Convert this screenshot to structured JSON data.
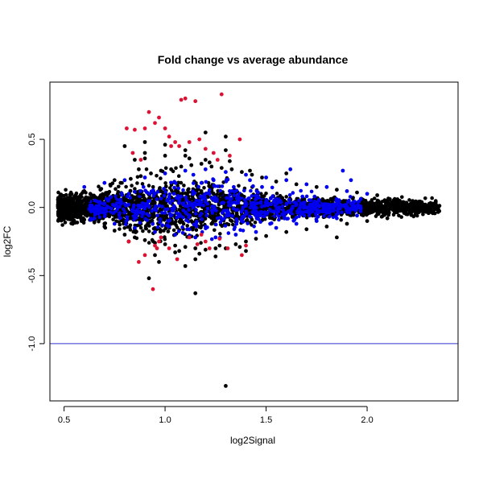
{
  "chart_data": {
    "type": "scatter",
    "title": "Fold change vs average abundance",
    "xlabel": "log2Signal",
    "ylabel": "log2FC",
    "xlim": [
      0.43,
      2.45
    ],
    "ylim": [
      -1.42,
      0.92
    ],
    "x_ticks": [
      0.5,
      1.0,
      1.5,
      2.0
    ],
    "x_tick_labels": [
      "0.5",
      "1.0",
      "1.5",
      "2.0"
    ],
    "y_ticks": [
      -1.0,
      -0.5,
      0.0,
      0.5
    ],
    "y_tick_labels": [
      "-1.0",
      "-0.5",
      "0.0",
      "0.5"
    ],
    "grid": false,
    "hline": {
      "y": -1.0,
      "color": "#3333cc"
    },
    "colors": {
      "background_points": "#000000",
      "mid_points": "#0000ee",
      "significant_points": "#dd1133"
    },
    "series": [
      {
        "color": "#000000",
        "x": [
          0.47,
          0.5,
          0.53,
          0.55,
          0.58,
          0.6,
          0.63,
          0.65,
          0.68,
          0.7,
          0.73,
          0.75,
          0.78,
          0.8,
          0.83,
          0.85,
          0.88,
          0.9,
          0.93,
          0.95,
          0.98,
          1.0,
          1.03,
          1.05,
          1.08,
          1.1,
          1.13,
          1.15,
          1.18,
          1.2,
          1.23,
          1.25,
          1.28,
          1.3,
          1.33,
          1.35,
          1.38,
          1.4,
          1.43,
          1.45,
          1.48,
          1.5,
          1.55,
          1.6,
          1.65,
          1.7,
          1.75,
          1.8,
          1.85,
          1.9,
          1.95,
          2.0,
          2.05,
          2.1,
          2.15,
          2.2,
          2.25,
          2.3,
          2.35,
          0.8,
          0.85,
          0.9,
          0.95,
          1.0,
          1.05,
          1.1,
          1.2,
          1.25,
          0.9,
          1.0,
          1.1,
          1.2,
          1.3,
          1.4,
          1.6,
          1.85,
          1.1,
          1.15,
          0.92,
          0.97,
          1.3,
          0.6,
          0.7,
          0.75,
          0.82,
          0.87,
          1.07,
          1.12,
          1.17,
          1.22,
          1.27,
          1.32,
          1.37,
          1.42,
          0.62,
          0.72,
          0.77,
          0.83,
          0.88,
          0.93,
          0.98,
          1.03,
          1.08,
          1.13,
          1.18,
          1.23,
          1.28,
          1.33,
          1.38,
          1.43,
          1.48,
          1.53,
          1.58,
          1.63,
          1.68,
          1.73,
          1.78,
          1.83,
          1.88,
          1.93,
          1.98,
          2.03,
          0.9,
          1.15,
          1.3
        ],
        "y": [
          0.02,
          -0.04,
          0.05,
          -0.06,
          0.07,
          -0.09,
          0.1,
          -0.11,
          0.13,
          -0.14,
          0.16,
          -0.17,
          0.18,
          -0.2,
          0.21,
          -0.22,
          0.23,
          -0.24,
          0.25,
          -0.26,
          0.27,
          -0.27,
          0.28,
          -0.28,
          0.3,
          -0.29,
          0.31,
          -0.3,
          0.32,
          -0.31,
          0.3,
          -0.3,
          0.29,
          -0.3,
          0.28,
          -0.27,
          0.26,
          -0.25,
          0.24,
          -0.23,
          0.22,
          -0.21,
          0.19,
          -0.18,
          0.17,
          -0.16,
          0.15,
          -0.14,
          0.13,
          -0.12,
          0.11,
          -0.1,
          0.09,
          -0.08,
          0.06,
          -0.05,
          0.04,
          -0.03,
          0.0,
          0.45,
          0.35,
          0.4,
          -0.35,
          0.38,
          -0.33,
          0.42,
          0.35,
          -0.36,
          0.48,
          0.46,
          0.38,
          0.55,
          0.42,
          -0.32,
          0.25,
          -0.22,
          -0.43,
          -0.63,
          -0.52,
          -0.4,
          0.52,
          0.12,
          -0.12,
          0.2,
          -0.25,
          0.28,
          -0.32,
          0.36,
          -0.34,
          0.33,
          -0.28,
          0.34,
          -0.29,
          0.27,
          0.05,
          -0.05,
          0.08,
          -0.08,
          0.1,
          -0.1,
          0.12,
          -0.12,
          0.1,
          -0.1,
          0.12,
          -0.12,
          0.1,
          -0.1,
          0.09,
          -0.09,
          0.08,
          -0.08,
          0.07,
          -0.07,
          0.06,
          -0.06,
          0.05,
          -0.05,
          0.04,
          -0.04,
          0.03,
          -0.03,
          0.36,
          -0.38,
          -1.31
        ]
      },
      {
        "color": "#0000ee",
        "x": [
          0.6,
          0.65,
          0.7,
          0.75,
          0.8,
          0.85,
          0.9,
          0.95,
          1.0,
          1.05,
          1.1,
          1.15,
          1.2,
          1.25,
          1.3,
          1.35,
          1.4,
          1.45,
          1.5,
          1.55,
          1.6,
          1.65,
          1.7,
          1.75,
          1.8,
          1.85,
          1.9,
          1.95,
          2.0,
          0.72,
          0.88,
          1.02,
          1.18,
          1.28,
          1.38,
          1.48,
          1.58,
          1.68,
          1.78,
          1.62,
          1.88,
          1.92,
          1.22,
          1.32,
          1.42,
          1.52,
          0.98,
          1.08,
          1.12,
          1.24,
          1.34,
          1.44,
          1.54,
          1.64,
          1.74,
          0.82,
          0.92,
          1.14,
          1.26,
          1.36,
          1.46,
          1.56
        ],
        "y": [
          0.15,
          -0.08,
          0.18,
          -0.12,
          0.2,
          -0.15,
          0.22,
          -0.18,
          0.25,
          -0.2,
          0.27,
          -0.22,
          0.28,
          -0.22,
          0.26,
          -0.2,
          0.24,
          -0.18,
          0.22,
          -0.15,
          0.2,
          -0.12,
          0.17,
          -0.1,
          0.15,
          -0.08,
          0.12,
          -0.06,
          0.1,
          0.05,
          0.12,
          -0.14,
          0.18,
          0.03,
          -0.1,
          0.15,
          -0.05,
          0.08,
          -0.03,
          0.28,
          0.27,
          0.2,
          0.1,
          0.12,
          0.2,
          -0.12,
          -0.22,
          0.08,
          -0.16,
          0.2,
          0.15,
          -0.02,
          0.05,
          -0.09,
          0.08,
          0.1,
          -0.06,
          0.24,
          -0.08,
          0.06,
          0.11,
          -0.03
        ]
      },
      {
        "color": "#dd1133",
        "x": [
          0.81,
          0.85,
          0.9,
          0.92,
          0.95,
          0.97,
          1.0,
          1.02,
          1.05,
          1.07,
          1.08,
          1.1,
          1.15,
          1.17,
          1.2,
          1.24,
          1.28,
          1.32,
          1.37,
          0.82,
          0.87,
          0.9,
          0.95,
          0.98,
          1.02,
          1.06,
          1.12,
          1.16,
          1.18,
          1.2,
          1.22,
          1.27,
          1.31,
          1.38,
          1.4,
          0.94,
          0.97,
          1.12,
          0.96,
          0.84,
          0.88,
          1.26,
          1.03
        ],
        "y": [
          0.58,
          0.57,
          0.58,
          0.7,
          0.62,
          0.66,
          0.58,
          0.52,
          0.48,
          0.45,
          0.79,
          0.8,
          0.78,
          0.5,
          0.43,
          0.4,
          0.83,
          0.38,
          0.5,
          -0.25,
          -0.4,
          -0.35,
          -0.28,
          -0.22,
          -0.3,
          -0.38,
          -0.22,
          -0.27,
          -0.2,
          -0.25,
          -0.3,
          -0.23,
          -0.3,
          -0.35,
          -0.28,
          -0.6,
          -0.25,
          0.48,
          -0.3,
          0.4,
          0.35,
          0.35,
          0.45
        ]
      }
    ]
  }
}
